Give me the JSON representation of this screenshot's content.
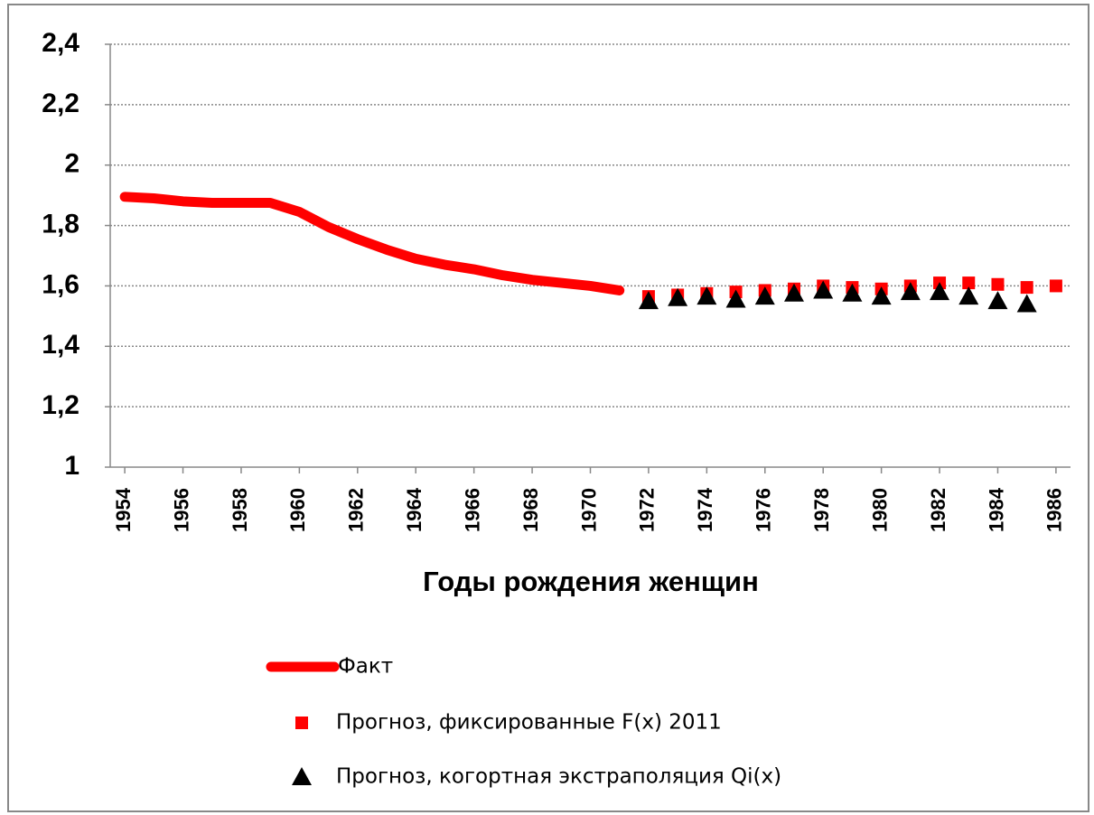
{
  "chart_data": {
    "type": "line",
    "xlabel": "Годы рождения женщин",
    "x": [
      1954,
      1955,
      1956,
      1957,
      1958,
      1959,
      1960,
      1961,
      1962,
      1963,
      1964,
      1965,
      1966,
      1967,
      1968,
      1969,
      1970,
      1971,
      1972,
      1973,
      1974,
      1975,
      1976,
      1977,
      1978,
      1979,
      1980,
      1981,
      1982,
      1983,
      1984,
      1985,
      1986
    ],
    "xlim": [
      1953.5,
      1986.5
    ],
    "xticks": [
      1954,
      1956,
      1958,
      1960,
      1962,
      1964,
      1966,
      1968,
      1970,
      1972,
      1974,
      1976,
      1978,
      1980,
      1982,
      1984,
      1986
    ],
    "ylim": [
      1,
      2.4
    ],
    "yticks": [
      1,
      {
        "value": 1.2,
        "label": "1,2"
      },
      {
        "value": 1.4,
        "label": "1,4"
      },
      {
        "value": 1.6,
        "label": "1,6"
      },
      {
        "value": 1.8,
        "label": "1,8"
      },
      2,
      {
        "value": 2.2,
        "label": "2,2"
      },
      {
        "value": 2.4,
        "label": "2,4"
      }
    ],
    "grid": true,
    "series": [
      {
        "name": "Факт",
        "color": "#ff0000",
        "marker": "line",
        "values": [
          1.895,
          1.89,
          1.88,
          1.875,
          1.875,
          1.875,
          1.845,
          1.795,
          1.755,
          1.72,
          1.69,
          1.67,
          1.655,
          1.635,
          1.62,
          1.61,
          1.6,
          1.585,
          null,
          null,
          null,
          null,
          null,
          null,
          null,
          null,
          null,
          null,
          null,
          null,
          null,
          null,
          null
        ]
      },
      {
        "name": "Прогноз, фиксированные F(x) 2011",
        "color": "#ff0000",
        "marker": "square",
        "values": [
          null,
          null,
          null,
          null,
          null,
          null,
          null,
          null,
          null,
          null,
          null,
          null,
          null,
          null,
          null,
          null,
          null,
          null,
          1.565,
          1.57,
          1.575,
          1.58,
          1.585,
          1.59,
          1.6,
          1.595,
          1.59,
          1.6,
          1.61,
          1.61,
          1.605,
          1.595,
          1.6
        ]
      },
      {
        "name": "Прогноз, когортная экстраполяция Qi(x)",
        "color": "#000000",
        "marker": "triangle",
        "values": [
          null,
          null,
          null,
          null,
          null,
          null,
          null,
          null,
          null,
          null,
          null,
          null,
          null,
          null,
          null,
          null,
          null,
          null,
          1.55,
          1.56,
          1.565,
          1.555,
          1.565,
          1.575,
          1.585,
          1.575,
          1.565,
          1.58,
          1.58,
          1.565,
          1.55,
          1.54,
          null
        ]
      }
    ]
  }
}
